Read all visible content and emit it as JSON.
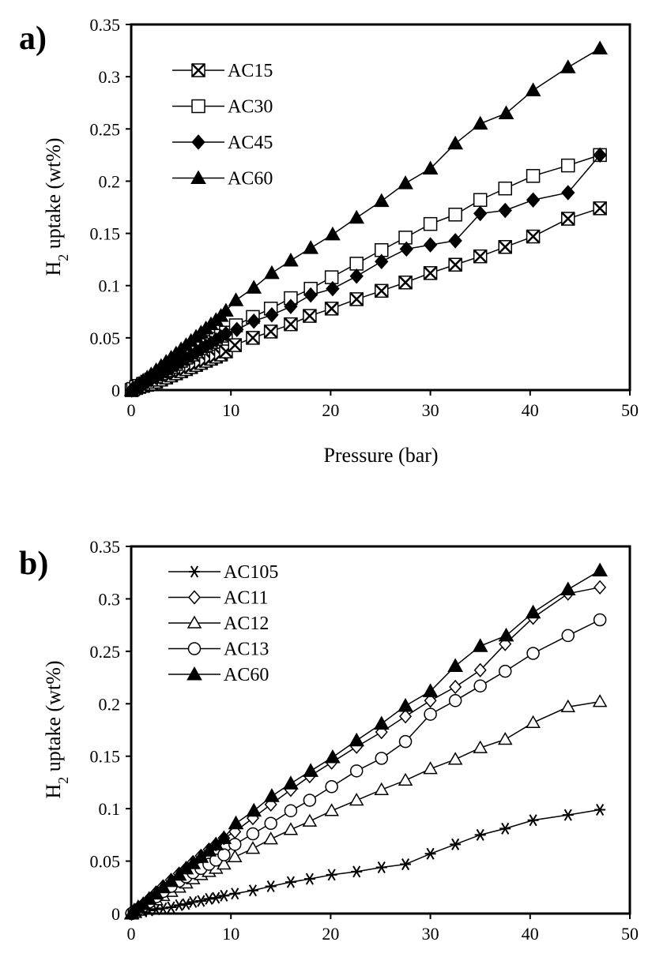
{
  "chart_data": [
    {
      "type": "line",
      "panel_label": "a)",
      "xlabel": "Pressure (bar)",
      "ylabel": "H2 uptake (wt%)",
      "xlim": [
        0,
        50
      ],
      "ylim": [
        0,
        0.35
      ],
      "xticks": [
        "0",
        "10",
        "20",
        "30",
        "40",
        "50"
      ],
      "yticks": [
        "0",
        "0.05",
        "0.1",
        "0.15",
        "0.2",
        "0.25",
        "0.3",
        "0.35"
      ],
      "grid": false,
      "legend_position": "top-left",
      "series": [
        {
          "name": "AC15",
          "marker": "boxx",
          "x": [
            0.05,
            0.2,
            0.5,
            0.8,
            1.2,
            1.6,
            2.0,
            2.5,
            3.0,
            3.5,
            4.0,
            4.5,
            5.0,
            5.5,
            6.0,
            6.5,
            7.0,
            7.5,
            8.0,
            8.5,
            9.0,
            9.5,
            10.4,
            12.2,
            14.0,
            16.0,
            17.9,
            20.1,
            22.6,
            25.1,
            27.5,
            30.0,
            32.5,
            35.0,
            37.5,
            40.3,
            43.8,
            47.0
          ],
          "y": [
            0.0,
            0.001,
            0.002,
            0.003,
            0.004,
            0.005,
            0.006,
            0.008,
            0.01,
            0.012,
            0.014,
            0.016,
            0.018,
            0.02,
            0.022,
            0.024,
            0.026,
            0.028,
            0.03,
            0.032,
            0.034,
            0.037,
            0.043,
            0.05,
            0.056,
            0.063,
            0.071,
            0.078,
            0.087,
            0.095,
            0.103,
            0.112,
            0.12,
            0.128,
            0.137,
            0.147,
            0.164,
            0.174
          ]
        },
        {
          "name": "AC30",
          "marker": "square",
          "x": [
            0.05,
            0.2,
            0.5,
            0.8,
            1.2,
            1.6,
            2.0,
            2.5,
            3.0,
            3.5,
            4.0,
            4.5,
            5.0,
            5.5,
            6.0,
            6.5,
            7.0,
            7.5,
            8.0,
            8.5,
            9.0,
            9.5,
            10.5,
            12.2,
            14.0,
            16.0,
            18.0,
            20.1,
            22.6,
            25.1,
            27.5,
            30.0,
            32.5,
            35.0,
            37.5,
            40.3,
            43.8,
            47.0
          ],
          "y": [
            0.0,
            0.001,
            0.003,
            0.004,
            0.006,
            0.008,
            0.01,
            0.013,
            0.016,
            0.019,
            0.022,
            0.025,
            0.028,
            0.031,
            0.034,
            0.037,
            0.04,
            0.043,
            0.046,
            0.049,
            0.052,
            0.055,
            0.062,
            0.07,
            0.078,
            0.088,
            0.097,
            0.108,
            0.121,
            0.134,
            0.146,
            0.159,
            0.168,
            0.182,
            0.193,
            0.205,
            0.215,
            0.225
          ]
        },
        {
          "name": "AC45",
          "marker": "diamond-filled",
          "x": [
            0.05,
            0.2,
            0.5,
            0.8,
            1.2,
            1.6,
            2.0,
            2.5,
            3.0,
            3.5,
            4.0,
            4.5,
            5.0,
            5.5,
            6.0,
            6.5,
            7.0,
            7.5,
            8.0,
            8.5,
            9.0,
            9.5,
            10.6,
            12.3,
            14.1,
            16.0,
            18.0,
            20.2,
            22.6,
            25.1,
            27.6,
            30.0,
            32.5,
            35.0,
            37.5,
            40.3,
            43.8,
            47.0
          ],
          "y": [
            0.0,
            0.001,
            0.003,
            0.004,
            0.006,
            0.008,
            0.01,
            0.012,
            0.015,
            0.018,
            0.021,
            0.024,
            0.027,
            0.03,
            0.033,
            0.036,
            0.039,
            0.042,
            0.045,
            0.048,
            0.051,
            0.054,
            0.058,
            0.066,
            0.072,
            0.08,
            0.091,
            0.097,
            0.109,
            0.123,
            0.135,
            0.139,
            0.143,
            0.169,
            0.172,
            0.182,
            0.189,
            0.225
          ]
        },
        {
          "name": "AC60",
          "marker": "triangle-filled",
          "x": [
            0.05,
            0.2,
            0.5,
            0.8,
            1.2,
            1.6,
            2.0,
            2.5,
            3.0,
            3.5,
            4.0,
            4.5,
            5.0,
            5.5,
            6.0,
            6.5,
            7.0,
            7.5,
            8.0,
            8.5,
            9.0,
            9.5,
            10.5,
            12.3,
            14.1,
            16.0,
            18.0,
            20.2,
            22.6,
            25.1,
            27.5,
            30.0,
            32.5,
            35.0,
            37.6,
            40.3,
            43.8,
            47.0
          ],
          "y": [
            0.0,
            0.002,
            0.004,
            0.006,
            0.009,
            0.012,
            0.015,
            0.019,
            0.023,
            0.027,
            0.031,
            0.035,
            0.039,
            0.043,
            0.047,
            0.051,
            0.055,
            0.059,
            0.063,
            0.067,
            0.071,
            0.076,
            0.086,
            0.098,
            0.112,
            0.124,
            0.136,
            0.149,
            0.165,
            0.181,
            0.198,
            0.212,
            0.236,
            0.255,
            0.265,
            0.287,
            0.309,
            0.327
          ]
        }
      ]
    },
    {
      "type": "line",
      "panel_label": "b)",
      "xlabel": "",
      "ylabel": "H2 uptake (wt%)",
      "xlim": [
        0,
        50
      ],
      "ylim": [
        0,
        0.35
      ],
      "xticks": [
        "0",
        "10",
        "20",
        "30",
        "40",
        "50"
      ],
      "yticks": [
        "0",
        "0.05",
        "0.1",
        "0.15",
        "0.2",
        "0.25",
        "0.3",
        "0.35"
      ],
      "grid": false,
      "legend_position": "top-left",
      "series": [
        {
          "name": "AC105",
          "marker": "asterisk",
          "x": [
            0.05,
            0.3,
            0.7,
            1.2,
            1.8,
            2.5,
            3.2,
            4.0,
            4.8,
            5.5,
            6.2,
            7.0,
            7.8,
            8.5,
            9.3,
            10.4,
            12.2,
            14.0,
            16.0,
            17.9,
            20.1,
            22.6,
            25.1,
            27.5,
            30.0,
            32.5,
            35.0,
            37.5,
            40.3,
            43.8,
            47.0
          ],
          "y": [
            0.0,
            0.001,
            0.001,
            0.002,
            0.003,
            0.004,
            0.005,
            0.006,
            0.008,
            0.009,
            0.011,
            0.012,
            0.014,
            0.015,
            0.017,
            0.019,
            0.022,
            0.026,
            0.03,
            0.033,
            0.037,
            0.04,
            0.044,
            0.047,
            0.057,
            0.066,
            0.075,
            0.081,
            0.089,
            0.094,
            0.099
          ]
        },
        {
          "name": "AC11",
          "marker": "diamond",
          "x": [
            0.05,
            0.3,
            0.7,
            1.2,
            1.8,
            2.5,
            3.2,
            4.0,
            4.8,
            5.5,
            6.2,
            7.0,
            7.8,
            8.5,
            9.3,
            10.4,
            12.2,
            14.0,
            16.0,
            17.9,
            20.1,
            22.6,
            25.1,
            27.5,
            30.0,
            32.5,
            35.0,
            37.5,
            40.3,
            43.8,
            47.0
          ],
          "y": [
            0.0,
            0.002,
            0.005,
            0.009,
            0.014,
            0.02,
            0.026,
            0.032,
            0.038,
            0.043,
            0.049,
            0.055,
            0.061,
            0.066,
            0.072,
            0.078,
            0.091,
            0.104,
            0.118,
            0.131,
            0.144,
            0.159,
            0.173,
            0.188,
            0.203,
            0.216,
            0.232,
            0.257,
            0.282,
            0.305,
            0.311
          ]
        },
        {
          "name": "AC12",
          "marker": "triangle",
          "x": [
            0.05,
            0.3,
            0.7,
            1.2,
            1.8,
            2.5,
            3.2,
            4.0,
            4.8,
            5.5,
            6.2,
            7.0,
            7.8,
            8.5,
            9.3,
            10.4,
            12.2,
            14.0,
            16.0,
            17.9,
            20.1,
            22.6,
            25.1,
            27.5,
            30.0,
            32.5,
            35.0,
            37.5,
            40.3,
            43.8,
            47.0
          ],
          "y": [
            0.0,
            0.001,
            0.003,
            0.006,
            0.009,
            0.013,
            0.017,
            0.021,
            0.025,
            0.029,
            0.033,
            0.037,
            0.04,
            0.043,
            0.047,
            0.054,
            0.062,
            0.071,
            0.08,
            0.088,
            0.098,
            0.108,
            0.118,
            0.127,
            0.138,
            0.147,
            0.158,
            0.166,
            0.182,
            0.197,
            0.202
          ]
        },
        {
          "name": "AC13",
          "marker": "circle",
          "x": [
            0.05,
            0.3,
            0.7,
            1.2,
            1.8,
            2.5,
            3.2,
            4.0,
            4.8,
            5.5,
            6.2,
            7.0,
            7.8,
            8.5,
            9.3,
            10.4,
            12.2,
            14.0,
            16.0,
            17.9,
            20.1,
            22.6,
            25.1,
            27.5,
            30.0,
            32.5,
            35.0,
            37.5,
            40.3,
            43.8,
            47.0
          ],
          "y": [
            0.0,
            0.002,
            0.004,
            0.007,
            0.011,
            0.016,
            0.021,
            0.026,
            0.031,
            0.035,
            0.039,
            0.043,
            0.047,
            0.051,
            0.056,
            0.066,
            0.076,
            0.086,
            0.098,
            0.108,
            0.121,
            0.136,
            0.148,
            0.164,
            0.19,
            0.203,
            0.217,
            0.231,
            0.248,
            0.265,
            0.28
          ]
        },
        {
          "name": "AC60",
          "marker": "triangle-filled",
          "x": [
            0.05,
            0.3,
            0.7,
            1.2,
            1.8,
            2.5,
            3.2,
            4.0,
            4.8,
            5.5,
            6.2,
            7.0,
            7.8,
            8.5,
            9.3,
            10.5,
            12.3,
            14.1,
            16.0,
            18.0,
            20.2,
            22.6,
            25.1,
            27.5,
            30.0,
            32.5,
            35.0,
            37.6,
            40.3,
            43.8,
            47.0
          ],
          "y": [
            0.0,
            0.003,
            0.006,
            0.009,
            0.014,
            0.019,
            0.025,
            0.031,
            0.037,
            0.043,
            0.048,
            0.054,
            0.06,
            0.066,
            0.072,
            0.086,
            0.098,
            0.112,
            0.124,
            0.136,
            0.149,
            0.165,
            0.181,
            0.198,
            0.212,
            0.236,
            0.255,
            0.265,
            0.287,
            0.309,
            0.327
          ]
        }
      ]
    }
  ]
}
